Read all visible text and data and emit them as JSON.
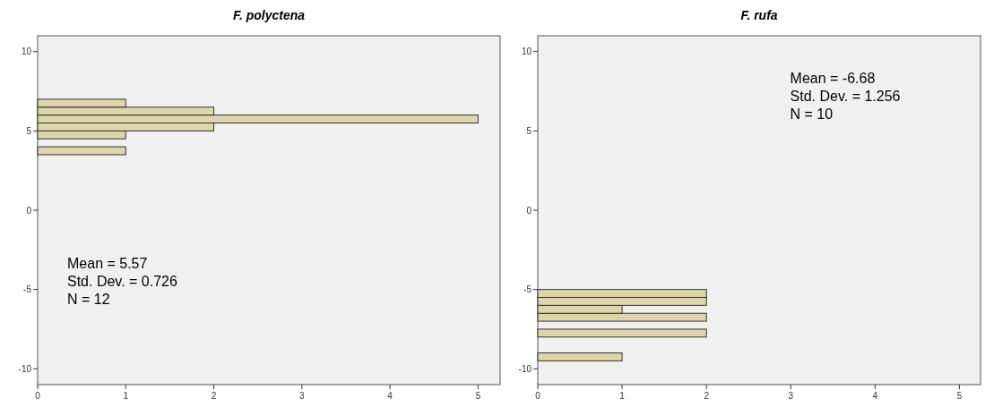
{
  "chart_data": [
    {
      "type": "histogram",
      "orientation": "horizontal",
      "title": "F. polyctena",
      "bins": [
        3.5,
        4,
        4.5,
        5,
        5.5,
        6,
        6.5,
        7
      ],
      "values": [
        1,
        0,
        1,
        2,
        5,
        2,
        1
      ],
      "color": "#dcd6aa",
      "xlim": [
        0,
        5.25
      ],
      "xticks": [
        0,
        1,
        2,
        3,
        4,
        5
      ],
      "ylim": [
        -11,
        11
      ],
      "yticks": [
        -10,
        -5,
        0,
        5,
        10
      ],
      "grid": false,
      "annotations": [
        "Mean = 5.57",
        "Std. Dev. = 0.726",
        "N = 12"
      ]
    },
    {
      "type": "histogram",
      "orientation": "horizontal",
      "title": "F. rufa",
      "bins": [
        -9.5,
        -9,
        -8.5,
        -8,
        -7.5,
        -7,
        -6.5,
        -6,
        -5.5,
        -5
      ],
      "values": [
        1,
        0,
        0,
        2,
        0,
        2,
        1,
        2,
        2
      ],
      "color": "#dcd6aa",
      "xlim": [
        0,
        5.25
      ],
      "xticks": [
        0,
        1,
        2,
        3,
        4,
        5
      ],
      "ylim": [
        -11,
        11
      ],
      "yticks": [
        -10,
        -5,
        0,
        5,
        10
      ],
      "grid": false,
      "annotations": [
        "Mean = -6.68",
        "Std. Dev. = 1.256",
        "N = 10"
      ]
    }
  ]
}
